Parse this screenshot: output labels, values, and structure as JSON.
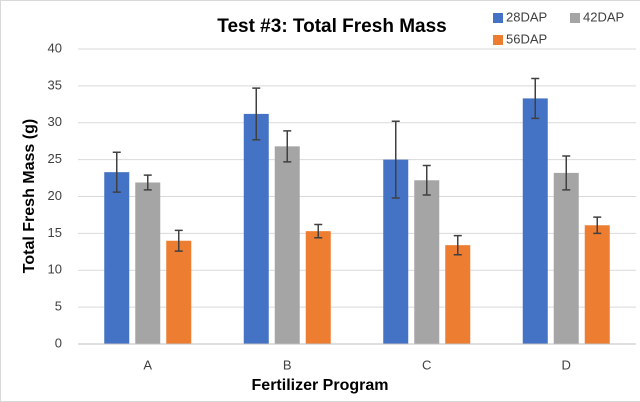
{
  "chart_data": {
    "type": "bar",
    "title": "Test #3: Total Fresh Mass",
    "x_label": "Fertilizer Program",
    "y_label": "Total Fresh Mass (g)",
    "categories": [
      "A",
      "B",
      "C",
      "D"
    ],
    "series": [
      {
        "name": "28DAP",
        "color": "#4472c4",
        "values": [
          23.3,
          31.2,
          25.0,
          33.3
        ],
        "errors": [
          2.7,
          3.5,
          5.2,
          2.7
        ]
      },
      {
        "name": "42DAP",
        "color": "#a5a5a5",
        "values": [
          21.9,
          26.8,
          22.2,
          23.2
        ],
        "errors": [
          1.0,
          2.1,
          2.0,
          2.3
        ]
      },
      {
        "name": "56DAP",
        "color": "#ed7d31",
        "values": [
          14.0,
          15.3,
          13.4,
          16.1
        ],
        "errors": [
          1.4,
          0.9,
          1.3,
          1.1
        ]
      }
    ],
    "ylim": [
      0,
      40
    ],
    "yticks": [
      0,
      5,
      10,
      15,
      20,
      25,
      30,
      35,
      40
    ],
    "grid": true,
    "legend": "top-right"
  }
}
